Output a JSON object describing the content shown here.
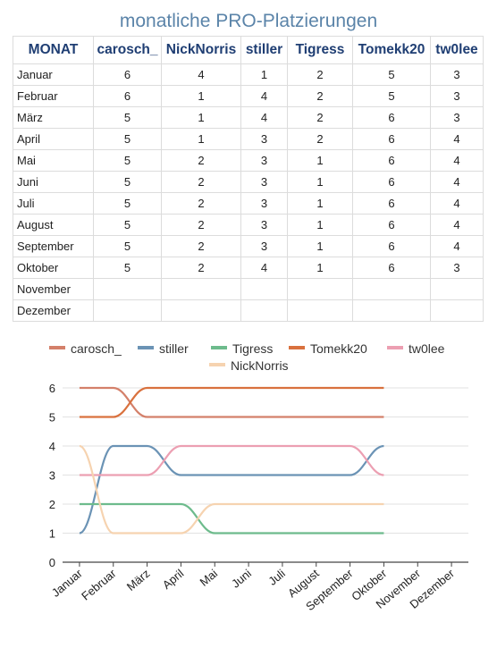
{
  "title": "monatliche PRO-Platzierungen",
  "table": {
    "headers": [
      "MONAT",
      "carosch_",
      "NickNorris",
      "stiller",
      "Tigress",
      "Tomekk20",
      "tw0lee"
    ],
    "rows": [
      [
        "Januar",
        "6",
        "4",
        "1",
        "2",
        "5",
        "3"
      ],
      [
        "Februar",
        "6",
        "1",
        "4",
        "2",
        "5",
        "3"
      ],
      [
        "März",
        "5",
        "1",
        "4",
        "2",
        "6",
        "3"
      ],
      [
        "April",
        "5",
        "1",
        "3",
        "2",
        "6",
        "4"
      ],
      [
        "Mai",
        "5",
        "2",
        "3",
        "1",
        "6",
        "4"
      ],
      [
        "Juni",
        "5",
        "2",
        "3",
        "1",
        "6",
        "4"
      ],
      [
        "Juli",
        "5",
        "2",
        "3",
        "1",
        "6",
        "4"
      ],
      [
        "August",
        "5",
        "2",
        "3",
        "1",
        "6",
        "4"
      ],
      [
        "September",
        "5",
        "2",
        "3",
        "1",
        "6",
        "4"
      ],
      [
        "Oktober",
        "5",
        "2",
        "4",
        "1",
        "6",
        "3"
      ],
      [
        "November",
        "",
        "",
        "",
        "",
        "",
        ""
      ],
      [
        "Dezember",
        "",
        "",
        "",
        "",
        "",
        ""
      ]
    ]
  },
  "chart_data": {
    "type": "line",
    "categories": [
      "Januar",
      "Februar",
      "März",
      "April",
      "Mai",
      "Juni",
      "Juli",
      "August",
      "September",
      "Oktober",
      "November",
      "Dezember"
    ],
    "series": [
      {
        "name": "carosch_",
        "color": "#d4806a",
        "values": [
          6,
          6,
          5,
          5,
          5,
          5,
          5,
          5,
          5,
          5,
          null,
          null
        ]
      },
      {
        "name": "stiller",
        "color": "#6b93b5",
        "values": [
          1,
          4,
          4,
          3,
          3,
          3,
          3,
          3,
          3,
          4,
          null,
          null
        ]
      },
      {
        "name": "Tigress",
        "color": "#6dbb8c",
        "values": [
          2,
          2,
          2,
          2,
          1,
          1,
          1,
          1,
          1,
          1,
          null,
          null
        ]
      },
      {
        "name": "Tomekk20",
        "color": "#d9713e",
        "values": [
          5,
          5,
          6,
          6,
          6,
          6,
          6,
          6,
          6,
          6,
          null,
          null
        ]
      },
      {
        "name": "tw0lee",
        "color": "#ec9fb2",
        "values": [
          3,
          3,
          3,
          4,
          4,
          4,
          4,
          4,
          4,
          3,
          null,
          null
        ]
      },
      {
        "name": "NickNorris",
        "color": "#f6d3b0",
        "values": [
          4,
          1,
          1,
          1,
          2,
          2,
          2,
          2,
          2,
          2,
          null,
          null
        ]
      }
    ],
    "ylim": [
      0,
      6
    ],
    "yticks": [
      "0",
      "1",
      "2",
      "3",
      "4",
      "5",
      "6"
    ],
    "grid": true,
    "legend": "top"
  }
}
